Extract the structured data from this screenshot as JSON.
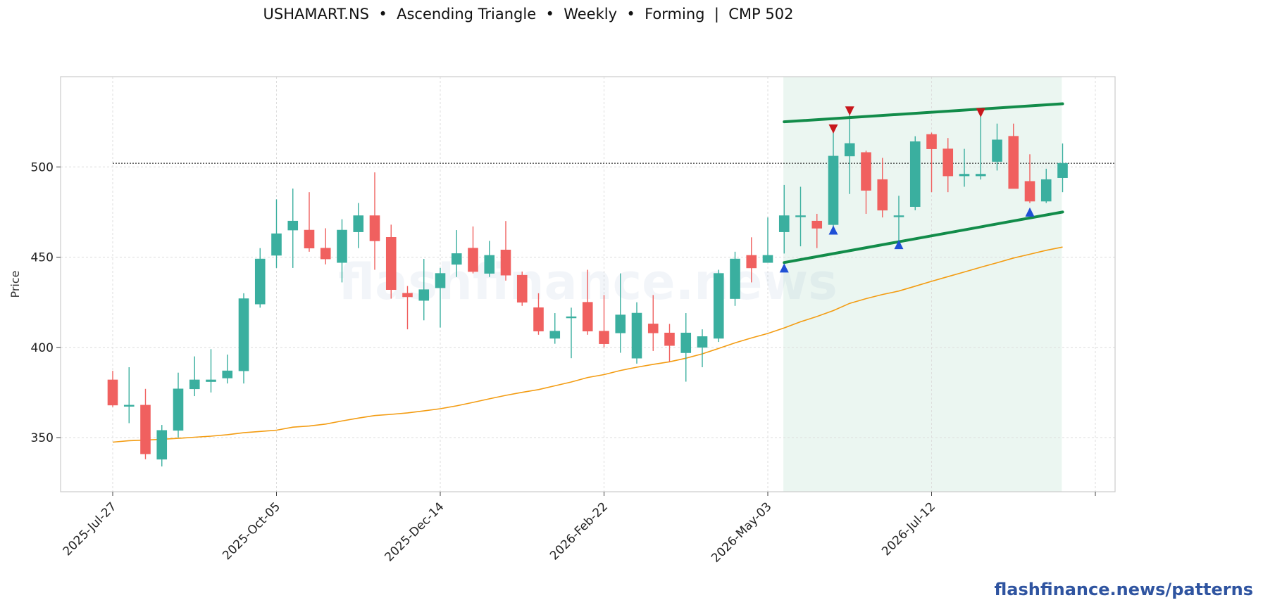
{
  "header": {
    "title": "USHAMART.NS  •  Ascending Triangle  •  Weekly  •  Forming  |  CMP 502"
  },
  "footer": {
    "brand": "flashfinance.news/patterns"
  },
  "watermark": "flashfinance.news",
  "colors": {
    "up": "#3aaf9f",
    "down": "#f0605f",
    "ma": "#f39c12",
    "trendline": "#128c4a",
    "zone": "#e8f5ee",
    "marker_up": "#1f4fd6",
    "marker_down": "#c8171c"
  },
  "chart_data": {
    "type": "candlestick",
    "ylabel": "Price",
    "ylim": [
      320,
      550
    ],
    "yticks": [
      350,
      400,
      450,
      500
    ],
    "grid": true,
    "xticks": [
      {
        "i": 0,
        "label": "2025-Jul-27"
      },
      {
        "i": 10,
        "label": "2025-Oct-05"
      },
      {
        "i": 20,
        "label": "2025-Dec-14"
      },
      {
        "i": 30,
        "label": "2026-Feb-22"
      },
      {
        "i": 40,
        "label": "2026-May-03"
      },
      {
        "i": 50,
        "label": "2026-Jul-12"
      },
      {
        "i": 60,
        "label": ""
      }
    ],
    "cmp_line": 502,
    "pattern_zone": {
      "start": 41,
      "end": 58
    },
    "resistance_line": {
      "start": [
        41,
        525
      ],
      "end": [
        58,
        535
      ]
    },
    "support_line": {
      "start": [
        41,
        447
      ],
      "end": [
        58,
        475
      ]
    },
    "candles": [
      [
        382,
        387,
        367,
        368
      ],
      [
        368,
        389,
        358,
        368
      ],
      [
        368,
        377,
        338,
        341
      ],
      [
        338,
        357,
        334,
        354
      ],
      [
        354,
        386,
        350,
        377
      ],
      [
        377,
        395,
        373,
        382
      ],
      [
        381,
        399,
        375,
        382
      ],
      [
        383,
        396,
        380,
        387
      ],
      [
        387,
        430,
        380,
        427
      ],
      [
        424,
        455,
        422,
        449
      ],
      [
        451,
        482,
        444,
        463
      ],
      [
        465,
        488,
        444,
        470
      ],
      [
        465,
        486,
        453,
        455
      ],
      [
        455,
        466,
        446,
        449
      ],
      [
        447,
        471,
        436,
        465
      ],
      [
        464,
        480,
        455,
        473
      ],
      [
        473,
        497,
        443,
        459
      ],
      [
        461,
        468,
        427,
        432
      ],
      [
        430,
        434,
        410,
        428
      ],
      [
        426,
        449,
        415,
        432
      ],
      [
        433,
        444,
        411,
        441
      ],
      [
        446,
        465,
        439,
        452
      ],
      [
        455,
        467,
        441,
        442
      ],
      [
        441,
        459,
        439,
        451
      ],
      [
        454,
        470,
        437,
        440
      ],
      [
        440,
        442,
        423,
        425
      ],
      [
        422,
        430,
        407,
        409
      ],
      [
        405,
        419,
        402,
        409
      ],
      [
        417,
        422,
        394,
        417
      ],
      [
        425,
        443,
        407,
        409
      ],
      [
        409,
        429,
        400,
        402
      ],
      [
        408,
        441,
        397,
        418
      ],
      [
        394,
        425,
        391,
        419
      ],
      [
        413,
        429,
        398,
        408
      ],
      [
        408,
        413,
        392,
        401
      ],
      [
        397,
        419,
        381,
        408
      ],
      [
        400,
        410,
        389,
        406
      ],
      [
        405,
        443,
        403,
        441
      ],
      [
        427,
        453,
        423,
        449
      ],
      [
        451,
        461,
        436,
        444
      ],
      [
        447,
        472,
        447,
        451
      ],
      [
        464,
        490,
        452,
        473
      ],
      [
        473,
        489,
        456,
        473
      ],
      [
        470,
        474,
        455,
        466
      ],
      [
        468,
        520,
        466,
        506
      ],
      [
        506,
        530,
        485,
        513
      ],
      [
        508,
        509,
        474,
        487
      ],
      [
        493,
        505,
        472,
        476
      ],
      [
        473,
        484,
        456,
        473
      ],
      [
        478,
        517,
        476,
        514
      ],
      [
        518,
        519,
        486,
        510
      ],
      [
        510,
        516,
        486,
        495
      ],
      [
        495,
        510,
        489,
        496
      ],
      [
        495,
        529,
        493,
        496
      ],
      [
        503,
        524,
        498,
        515
      ],
      [
        517,
        524,
        488,
        488
      ],
      [
        492,
        507,
        480,
        481
      ],
      [
        481,
        499,
        480,
        493
      ],
      [
        494,
        513,
        486,
        502
      ]
    ],
    "ma_series": [
      347.5,
      348.3,
      348.6,
      349.1,
      349.6,
      350.2,
      350.8,
      351.6,
      352.7,
      353.4,
      354.1,
      355.8,
      356.4,
      357.5,
      359.2,
      360.8,
      362.2,
      362.9,
      363.7,
      364.8,
      366.0,
      367.6,
      369.5,
      371.5,
      373.4,
      375.1,
      376.6,
      378.7,
      380.8,
      383.3,
      384.9,
      387.2,
      389.0,
      390.6,
      392.0,
      394.0,
      396.4,
      399.4,
      402.5,
      405.2,
      407.7,
      410.8,
      414.2,
      417.1,
      420.4,
      424.4,
      427.0,
      429.3,
      431.2,
      433.9,
      436.6,
      439.2,
      441.8,
      444.4,
      446.9,
      449.5,
      451.6,
      453.8,
      455.6
    ],
    "markers": [
      {
        "i": 41,
        "type": "up",
        "price": 444
      },
      {
        "i": 44,
        "type": "up",
        "price": 465
      },
      {
        "i": 44,
        "type": "down",
        "price": 521
      },
      {
        "i": 45,
        "type": "down",
        "price": 531
      },
      {
        "i": 48,
        "type": "up",
        "price": 457
      },
      {
        "i": 53,
        "type": "down",
        "price": 530
      },
      {
        "i": 56,
        "type": "up",
        "price": 475
      }
    ]
  }
}
